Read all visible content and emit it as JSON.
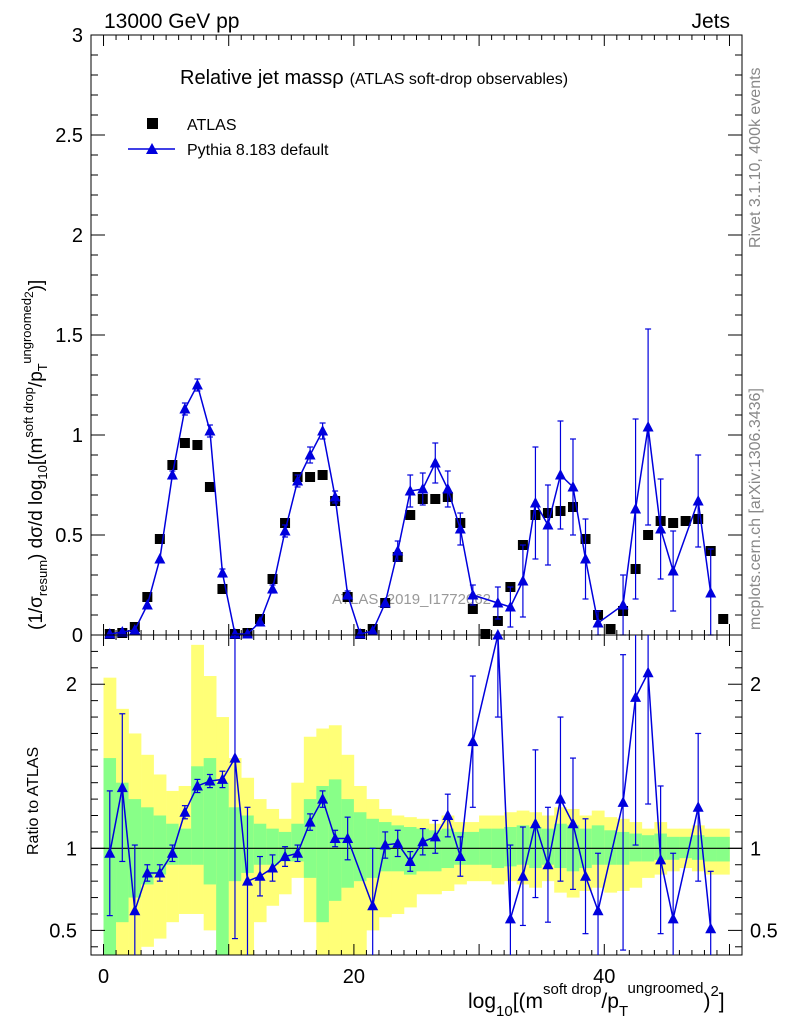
{
  "header": {
    "left": "13000 GeV pp",
    "right": "Jets"
  },
  "side_text": {
    "rivet": "Rivet 3.1.10,  400k events",
    "mcplots": "mcplots.cern.ch [arXiv:1306.3436]"
  },
  "watermark": "ATLAS_2019_I1772062",
  "colors": {
    "mc": "#0000dd",
    "data": "#000000",
    "band_outer": "#ffff77",
    "band_inner": "#88ff88"
  },
  "chart_data": [
    {
      "type": "scatter",
      "title": "Relative jet massρ",
      "subtitle": "(ATLAS soft-drop observables)",
      "ylabel": {
        "prefix": "(1/σ",
        "sub1": "resum",
        "mid": ") dσ/d log",
        "sub2": "10",
        "open": "[(m",
        "sup1": "soft drop",
        "slash": "/p",
        "sub3": "T",
        "sup2": "ungroomed",
        "sup3": "2",
        "close": ")]"
      },
      "xlim": [
        -1,
        51
      ],
      "ylim": [
        0,
        3
      ],
      "yticks": [
        0,
        0.5,
        1,
        1.5,
        2,
        2.5,
        3
      ],
      "ytick_labels": [
        "0",
        "0.5",
        "1",
        "1.5",
        "2",
        "2.5",
        "3"
      ],
      "legend": {
        "position": "top-left",
        "entries": [
          "ATLAS",
          "Pythia 8.183 default"
        ]
      },
      "series": [
        {
          "name": "ATLAS",
          "marker": "square",
          "x": [
            0.5,
            1.5,
            2.5,
            3.5,
            4.5,
            5.5,
            6.5,
            7.5,
            8.5,
            9.5,
            10.5,
            11.5,
            12.5,
            13.5,
            14.5,
            15.5,
            16.5,
            17.5,
            18.5,
            19.5,
            20.5,
            21.5,
            22.5,
            23.5,
            24.5,
            25.5,
            26.5,
            27.5,
            28.5,
            29.5,
            30.5,
            31.5,
            32.5,
            33.5,
            34.5,
            35.5,
            36.5,
            37.5,
            38.5,
            39.5,
            40.5,
            41.5,
            42.5,
            43.5,
            44.5,
            45.5,
            46.5,
            47.5,
            48.5,
            49.5
          ],
          "y": [
            0.005,
            0.01,
            0.04,
            0.19,
            0.48,
            0.85,
            0.96,
            0.95,
            0.74,
            0.23,
            0.005,
            0.01,
            0.08,
            0.28,
            0.56,
            0.79,
            0.79,
            0.8,
            0.67,
            0.19,
            0.005,
            0.03,
            0.16,
            0.39,
            0.6,
            0.68,
            0.68,
            0.69,
            0.56,
            0.13,
            0.005,
            0.07,
            0.24,
            0.45,
            0.6,
            0.61,
            0.62,
            0.64,
            0.48,
            0.1,
            0.03,
            0.12,
            0.33,
            0.5,
            0.57,
            0.56,
            0.57,
            0.58,
            0.42,
            0.08
          ]
        },
        {
          "name": "Pythia 8.183 default",
          "marker": "triangle",
          "x": [
            0.5,
            1.5,
            2.5,
            3.5,
            4.5,
            5.5,
            6.5,
            7.5,
            8.5,
            9.5,
            10.5,
            11.5,
            12.5,
            13.5,
            14.5,
            15.5,
            16.5,
            17.5,
            18.5,
            19.5,
            20.5,
            21.5,
            22.5,
            23.5,
            24.5,
            25.5,
            26.5,
            27.5,
            28.5,
            29.5,
            31.5,
            32.5,
            33.5,
            34.5,
            35.5,
            36.5,
            37.5,
            38.5,
            39.5,
            41.5,
            42.5,
            43.5,
            44.5,
            45.5,
            47.5,
            48.5
          ],
          "y": [
            0.005,
            0.015,
            0.025,
            0.15,
            0.38,
            0.8,
            1.13,
            1.25,
            1.02,
            0.31,
            0.005,
            0.005,
            0.065,
            0.23,
            0.52,
            0.77,
            0.9,
            1.02,
            0.69,
            0.2,
            0.005,
            0.02,
            0.16,
            0.42,
            0.72,
            0.73,
            0.86,
            0.73,
            0.53,
            0.2,
            0.16,
            0.14,
            0.27,
            0.66,
            0.55,
            0.8,
            0.74,
            0.38,
            0.06,
            0.15,
            0.63,
            1.04,
            0.53,
            0.32,
            0.67,
            0.21
          ],
          "yerr": [
            0,
            0,
            0,
            0,
            0,
            0.02,
            0.03,
            0.03,
            0.03,
            0.02,
            0,
            0,
            0,
            0.02,
            0.03,
            0.03,
            0.04,
            0.04,
            0.03,
            0.02,
            0,
            0,
            0,
            0.05,
            0.08,
            0.08,
            0.1,
            0.09,
            0.08,
            0.05,
            0.08,
            0.1,
            0.18,
            0.28,
            0.2,
            0.27,
            0.24,
            0.2,
            0.06,
            0.15,
            0.45,
            0.49,
            0.25,
            0.2,
            0.23,
            0.22
          ]
        }
      ]
    },
    {
      "type": "scatter",
      "ylabel": "Ratio to ATLAS",
      "xlabel": {
        "pre": "log",
        "sub1": "10",
        "open": "[(m",
        "sup1": "soft drop",
        "slash": "/p",
        "sub2": "T",
        "sup2": "ungroomed",
        "close": ")",
        "sup3": "2",
        "end": "]"
      },
      "xlim": [
        -1,
        51
      ],
      "ylim": [
        0.35,
        2.3
      ],
      "yticks": [
        0.5,
        1,
        2
      ],
      "ytick_labels": [
        "0.5",
        "1",
        "2"
      ],
      "xticks": [
        0,
        20,
        40
      ],
      "xtick_labels": [
        "0",
        "20",
        "40"
      ],
      "bands": {
        "edges": [
          0,
          1,
          2,
          3,
          4,
          5,
          6,
          7,
          8,
          9,
          10,
          11,
          12,
          13,
          14,
          15,
          16,
          17,
          18,
          19,
          20,
          21,
          22,
          23,
          24,
          25,
          26,
          27,
          28,
          29,
          30,
          31,
          32,
          33,
          34,
          35,
          36,
          37,
          38,
          39,
          40,
          41,
          42,
          43,
          44,
          45,
          46,
          47,
          48,
          49,
          50
        ],
        "outer_low": [
          0.35,
          0.35,
          0.35,
          0.4,
          0.45,
          0.55,
          0.6,
          0.6,
          0.5,
          0.35,
          0.35,
          0.35,
          0.55,
          0.65,
          0.72,
          0.82,
          0.55,
          0.35,
          0.35,
          0.35,
          0.35,
          0.5,
          0.58,
          0.6,
          0.64,
          0.72,
          0.72,
          0.74,
          0.78,
          0.8,
          0.8,
          0.78,
          0.8,
          0.78,
          0.76,
          0.8,
          0.73,
          0.7,
          0.74,
          0.76,
          0.73,
          0.74,
          0.76,
          0.82,
          0.84,
          0.86,
          0.88,
          0.86,
          0.84,
          0.84
        ],
        "outer_high": [
          2.04,
          1.85,
          1.7,
          1.57,
          1.45,
          1.35,
          1.38,
          2.24,
          2.05,
          1.8,
          1.55,
          1.43,
          1.3,
          1.24,
          1.18,
          1.4,
          1.68,
          1.73,
          1.75,
          1.57,
          1.38,
          1.3,
          1.24,
          1.2,
          1.19,
          1.18,
          1.15,
          1.2,
          1.16,
          1.16,
          1.2,
          1.2,
          1.22,
          1.23,
          1.22,
          1.2,
          1.25,
          1.24,
          1.2,
          1.23,
          1.19,
          1.18,
          1.16,
          1.12,
          1.16,
          1.12,
          1.12,
          1.14,
          1.12,
          1.12
        ],
        "inner_low": [
          0.35,
          0.55,
          0.7,
          0.78,
          0.84,
          0.9,
          0.9,
          0.9,
          0.78,
          0.35,
          0.8,
          0.85,
          0.9,
          0.9,
          0.92,
          0.92,
          0.82,
          0.55,
          0.68,
          0.76,
          0.8,
          0.82,
          0.86,
          0.86,
          0.84,
          0.86,
          0.86,
          0.88,
          0.9,
          0.9,
          0.9,
          0.88,
          0.89,
          0.9,
          0.88,
          0.9,
          0.88,
          0.86,
          0.88,
          0.9,
          0.9,
          0.9,
          0.92,
          0.92,
          0.93,
          0.93,
          0.94,
          0.93,
          0.92,
          0.92
        ],
        "inner_high": [
          1.55,
          1.4,
          1.3,
          1.25,
          1.2,
          1.15,
          1.12,
          1.5,
          1.55,
          1.4,
          1.25,
          1.2,
          1.15,
          1.12,
          1.1,
          1.15,
          1.3,
          1.38,
          1.42,
          1.3,
          1.22,
          1.18,
          1.16,
          1.14,
          1.13,
          1.12,
          1.11,
          1.12,
          1.1,
          1.1,
          1.12,
          1.12,
          1.13,
          1.14,
          1.13,
          1.12,
          1.15,
          1.14,
          1.12,
          1.14,
          1.11,
          1.1,
          1.09,
          1.08,
          1.09,
          1.07,
          1.07,
          1.08,
          1.07,
          1.07
        ]
      },
      "series": [
        {
          "name": "Pythia 8.183 default / ATLAS",
          "marker": "triangle",
          "x": [
            0.5,
            1.5,
            2.5,
            3.5,
            4.5,
            5.5,
            6.5,
            7.5,
            8.5,
            9.5,
            10.5,
            11.5,
            12.5,
            13.5,
            14.5,
            15.5,
            16.5,
            17.5,
            18.5,
            19.5,
            21.5,
            22.5,
            23.5,
            24.5,
            25.5,
            26.5,
            27.5,
            28.5,
            29.5,
            31.5,
            32.5,
            33.5,
            34.5,
            35.5,
            36.5,
            37.5,
            38.5,
            39.5,
            41.5,
            42.5,
            43.5,
            44.5,
            45.5,
            47.5,
            48.5
          ],
          "y": [
            0.97,
            1.37,
            0.62,
            0.85,
            0.85,
            0.97,
            1.22,
            1.38,
            1.41,
            1.42,
            1.55,
            0.8,
            0.83,
            0.88,
            0.95,
            0.97,
            1.16,
            1.3,
            1.06,
            1.06,
            0.65,
            1.02,
            1.03,
            0.92,
            1.04,
            1.07,
            1.2,
            0.95,
            1.65,
            2.35,
            0.57,
            0.83,
            1.15,
            0.9,
            1.3,
            1.15,
            0.83,
            0.62,
            1.28,
            1.92,
            2.07,
            0.93,
            0.57,
            1.25,
            0.51
          ],
          "yerr": [
            0.38,
            0.45,
            0.4,
            0.05,
            0.05,
            0.05,
            0.04,
            0.04,
            0.04,
            0.05,
            1.1,
            0.45,
            0.12,
            0.08,
            0.06,
            0.05,
            0.05,
            0.05,
            0.05,
            0.13,
            0.35,
            0.08,
            0.08,
            0.06,
            0.08,
            0.1,
            0.13,
            0.12,
            0.4,
            0.55,
            0.45,
            0.3,
            0.45,
            0.35,
            0.5,
            0.4,
            0.35,
            0.35,
            0.9,
            0.9,
            0.8,
            0.45,
            0.4,
            0.45,
            0.35
          ]
        }
      ]
    }
  ]
}
